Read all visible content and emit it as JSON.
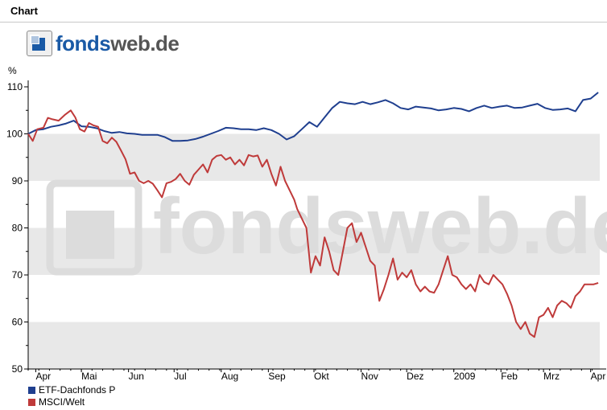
{
  "header": {
    "title": "Chart"
  },
  "logo": {
    "brand_part1": "fonds",
    "brand_part2": "web.de"
  },
  "watermark": {
    "text": "fondsweb.de"
  },
  "chart_data": {
    "type": "line",
    "ylabel": "%",
    "ylim": [
      50,
      110
    ],
    "yticks": [
      50,
      60,
      70,
      80,
      90,
      100,
      110
    ],
    "xlim": [
      0,
      376
    ],
    "x_unit": "days from 2008-04-01",
    "month_ticks": [
      {
        "label": "Apr",
        "x": 5
      },
      {
        "label": "Mai",
        "x": 35
      },
      {
        "label": "Jun",
        "x": 66
      },
      {
        "label": "Jul",
        "x": 96
      },
      {
        "label": "Aug",
        "x": 127
      },
      {
        "label": "Sep",
        "x": 158
      },
      {
        "label": "Okt",
        "x": 188
      },
      {
        "label": "Nov",
        "x": 219
      },
      {
        "label": "Dez",
        "x": 249
      },
      {
        "label": "2009",
        "x": 280
      },
      {
        "label": "Feb",
        "x": 311
      },
      {
        "label": "Mrz",
        "x": 339
      },
      {
        "label": "Apr",
        "x": 370
      }
    ],
    "bands": [
      [
        50,
        60
      ],
      [
        70,
        80
      ],
      [
        90,
        100
      ]
    ],
    "grid": false,
    "legend_position": "bottom-left",
    "series": [
      {
        "name": "ETF-Dachfonds P",
        "color": "#1f3f8f",
        "points": [
          [
            0,
            100
          ],
          [
            5,
            100.8
          ],
          [
            10,
            101
          ],
          [
            15,
            101.5
          ],
          [
            20,
            101.8
          ],
          [
            25,
            102.2
          ],
          [
            30,
            102.8
          ],
          [
            35,
            101.6
          ],
          [
            40,
            101.5
          ],
          [
            45,
            101.2
          ],
          [
            50,
            100.6
          ],
          [
            55,
            100.2
          ],
          [
            60,
            100.4
          ],
          [
            65,
            100.1
          ],
          [
            70,
            100
          ],
          [
            75,
            99.8
          ],
          [
            80,
            99.8
          ],
          [
            85,
            99.8
          ],
          [
            90,
            99.3
          ],
          [
            95,
            98.5
          ],
          [
            100,
            98.5
          ],
          [
            105,
            98.6
          ],
          [
            110,
            98.9
          ],
          [
            115,
            99.4
          ],
          [
            120,
            100
          ],
          [
            125,
            100.6
          ],
          [
            130,
            101.3
          ],
          [
            135,
            101.2
          ],
          [
            140,
            101
          ],
          [
            145,
            101
          ],
          [
            150,
            100.8
          ],
          [
            155,
            101.2
          ],
          [
            160,
            100.8
          ],
          [
            165,
            100
          ],
          [
            170,
            98.8
          ],
          [
            175,
            99.5
          ],
          [
            180,
            101
          ],
          [
            185,
            102.5
          ],
          [
            190,
            101.5
          ],
          [
            195,
            103.5
          ],
          [
            200,
            105.5
          ],
          [
            205,
            106.8
          ],
          [
            210,
            106.5
          ],
          [
            215,
            106.3
          ],
          [
            220,
            106.8
          ],
          [
            225,
            106.3
          ],
          [
            230,
            106.7
          ],
          [
            235,
            107.2
          ],
          [
            240,
            106.5
          ],
          [
            245,
            105.5
          ],
          [
            250,
            105.2
          ],
          [
            255,
            105.8
          ],
          [
            260,
            105.6
          ],
          [
            265,
            105.4
          ],
          [
            270,
            105
          ],
          [
            275,
            105.2
          ],
          [
            280,
            105.5
          ],
          [
            285,
            105.3
          ],
          [
            290,
            104.8
          ],
          [
            295,
            105.5
          ],
          [
            300,
            106
          ],
          [
            305,
            105.5
          ],
          [
            310,
            105.8
          ],
          [
            315,
            106
          ],
          [
            320,
            105.5
          ],
          [
            325,
            105.6
          ],
          [
            330,
            106
          ],
          [
            335,
            106.4
          ],
          [
            340,
            105.5
          ],
          [
            345,
            105.1
          ],
          [
            350,
            105.2
          ],
          [
            355,
            105.4
          ],
          [
            360,
            104.8
          ],
          [
            365,
            107.2
          ],
          [
            370,
            107.5
          ],
          [
            375,
            108.8
          ]
        ]
      },
      {
        "name": "MSCI/Welt",
        "color": "#bf3a3a",
        "points": [
          [
            0,
            100
          ],
          [
            3,
            98.5
          ],
          [
            6,
            101
          ],
          [
            10,
            101.3
          ],
          [
            13,
            103.4
          ],
          [
            16,
            103.1
          ],
          [
            20,
            102.8
          ],
          [
            24,
            104
          ],
          [
            28,
            105
          ],
          [
            31,
            103.5
          ],
          [
            34,
            101
          ],
          [
            37,
            100.5
          ],
          [
            40,
            102.3
          ],
          [
            43,
            101.8
          ],
          [
            46,
            101.5
          ],
          [
            49,
            98.5
          ],
          [
            52,
            98
          ],
          [
            55,
            99.2
          ],
          [
            58,
            98.3
          ],
          [
            61,
            96.5
          ],
          [
            64,
            94.6
          ],
          [
            67,
            91.5
          ],
          [
            70,
            91.8
          ],
          [
            73,
            90
          ],
          [
            76,
            89.5
          ],
          [
            79,
            90
          ],
          [
            82,
            89.4
          ],
          [
            85,
            88
          ],
          [
            88,
            86.5
          ],
          [
            91,
            89.5
          ],
          [
            94,
            89.8
          ],
          [
            97,
            90.4
          ],
          [
            100,
            91.5
          ],
          [
            103,
            90
          ],
          [
            106,
            89.2
          ],
          [
            109,
            91.3
          ],
          [
            112,
            92.4
          ],
          [
            115,
            93.5
          ],
          [
            118,
            91.8
          ],
          [
            121,
            94.5
          ],
          [
            124,
            95.3
          ],
          [
            127,
            95.5
          ],
          [
            130,
            94.5
          ],
          [
            133,
            95
          ],
          [
            136,
            93.5
          ],
          [
            139,
            94.5
          ],
          [
            142,
            93.3
          ],
          [
            145,
            95.5
          ],
          [
            148,
            95.2
          ],
          [
            151,
            95.4
          ],
          [
            154,
            93
          ],
          [
            157,
            94.5
          ],
          [
            160,
            91.5
          ],
          [
            163,
            89
          ],
          [
            166,
            93
          ],
          [
            169,
            90
          ],
          [
            172,
            88
          ],
          [
            175,
            86
          ],
          [
            177,
            84
          ],
          [
            180,
            82
          ],
          [
            183,
            80
          ],
          [
            186,
            70.5
          ],
          [
            189,
            74
          ],
          [
            192,
            72
          ],
          [
            195,
            78
          ],
          [
            198,
            75
          ],
          [
            201,
            71
          ],
          [
            204,
            70
          ],
          [
            207,
            75
          ],
          [
            210,
            80
          ],
          [
            213,
            81
          ],
          [
            216,
            77
          ],
          [
            219,
            79
          ],
          [
            222,
            76
          ],
          [
            225,
            73
          ],
          [
            228,
            72
          ],
          [
            231,
            64.5
          ],
          [
            234,
            67
          ],
          [
            237,
            70
          ],
          [
            240,
            73.5
          ],
          [
            243,
            69
          ],
          [
            246,
            70.5
          ],
          [
            249,
            69.5
          ],
          [
            252,
            71
          ],
          [
            255,
            68
          ],
          [
            258,
            66.5
          ],
          [
            261,
            67.5
          ],
          [
            264,
            66.5
          ],
          [
            267,
            66.2
          ],
          [
            270,
            68
          ],
          [
            273,
            71
          ],
          [
            276,
            74
          ],
          [
            279,
            70
          ],
          [
            282,
            69.5
          ],
          [
            285,
            68
          ],
          [
            288,
            67
          ],
          [
            291,
            68
          ],
          [
            294,
            66.5
          ],
          [
            297,
            70
          ],
          [
            300,
            68.5
          ],
          [
            303,
            68
          ],
          [
            306,
            70
          ],
          [
            309,
            69
          ],
          [
            312,
            68
          ],
          [
            315,
            66
          ],
          [
            318,
            63.5
          ],
          [
            321,
            60
          ],
          [
            324,
            58.5
          ],
          [
            327,
            60
          ],
          [
            330,
            57.5
          ],
          [
            333,
            56.8
          ],
          [
            336,
            61
          ],
          [
            339,
            61.5
          ],
          [
            342,
            63
          ],
          [
            345,
            61
          ],
          [
            348,
            63.5
          ],
          [
            351,
            64.5
          ],
          [
            354,
            64
          ],
          [
            357,
            63
          ],
          [
            360,
            65.5
          ],
          [
            363,
            66.5
          ],
          [
            366,
            68
          ],
          [
            369,
            68
          ],
          [
            372,
            68
          ],
          [
            375,
            68.3
          ]
        ]
      }
    ]
  }
}
